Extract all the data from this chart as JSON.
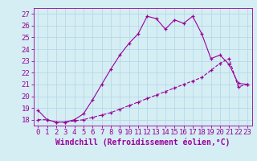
{
  "xlabel": "Windchill (Refroidissement éolien,°C)",
  "x_ticks": [
    0,
    1,
    2,
    3,
    4,
    5,
    6,
    7,
    8,
    9,
    10,
    11,
    12,
    13,
    14,
    15,
    16,
    17,
    18,
    19,
    20,
    21,
    22,
    23
  ],
  "ylim": [
    17.5,
    27.5
  ],
  "xlim": [
    -0.5,
    23.5
  ],
  "yticks": [
    18,
    19,
    20,
    21,
    22,
    23,
    24,
    25,
    26,
    27
  ],
  "line1_x": [
    0,
    1,
    2,
    3,
    4,
    5,
    6,
    7,
    8,
    9,
    10,
    11,
    12,
    13,
    14,
    15,
    16,
    17,
    18,
    19,
    20,
    21,
    22,
    23
  ],
  "line1_y": [
    18.8,
    18.0,
    17.8,
    17.8,
    18.0,
    18.5,
    19.7,
    21.0,
    22.3,
    23.5,
    24.5,
    25.3,
    26.8,
    26.6,
    25.7,
    26.5,
    26.2,
    26.8,
    25.3,
    23.2,
    23.5,
    22.7,
    21.1,
    21.0
  ],
  "line2_x": [
    0,
    1,
    2,
    3,
    4,
    5,
    6,
    7,
    8,
    9,
    10,
    11,
    12,
    13,
    14,
    15,
    16,
    17,
    18,
    19,
    20,
    21,
    22,
    23
  ],
  "line2_y": [
    18.0,
    18.0,
    17.8,
    17.8,
    17.9,
    18.0,
    18.2,
    18.4,
    18.6,
    18.9,
    19.2,
    19.5,
    19.8,
    20.1,
    20.4,
    20.7,
    21.0,
    21.3,
    21.6,
    22.2,
    22.8,
    23.2,
    20.8,
    21.0
  ],
  "line_color": "#990099",
  "bg_color": "#d5eef4",
  "grid_color": "#b8d8e8",
  "tick_label_fontsize": 6.5,
  "xlabel_fontsize": 7.0
}
